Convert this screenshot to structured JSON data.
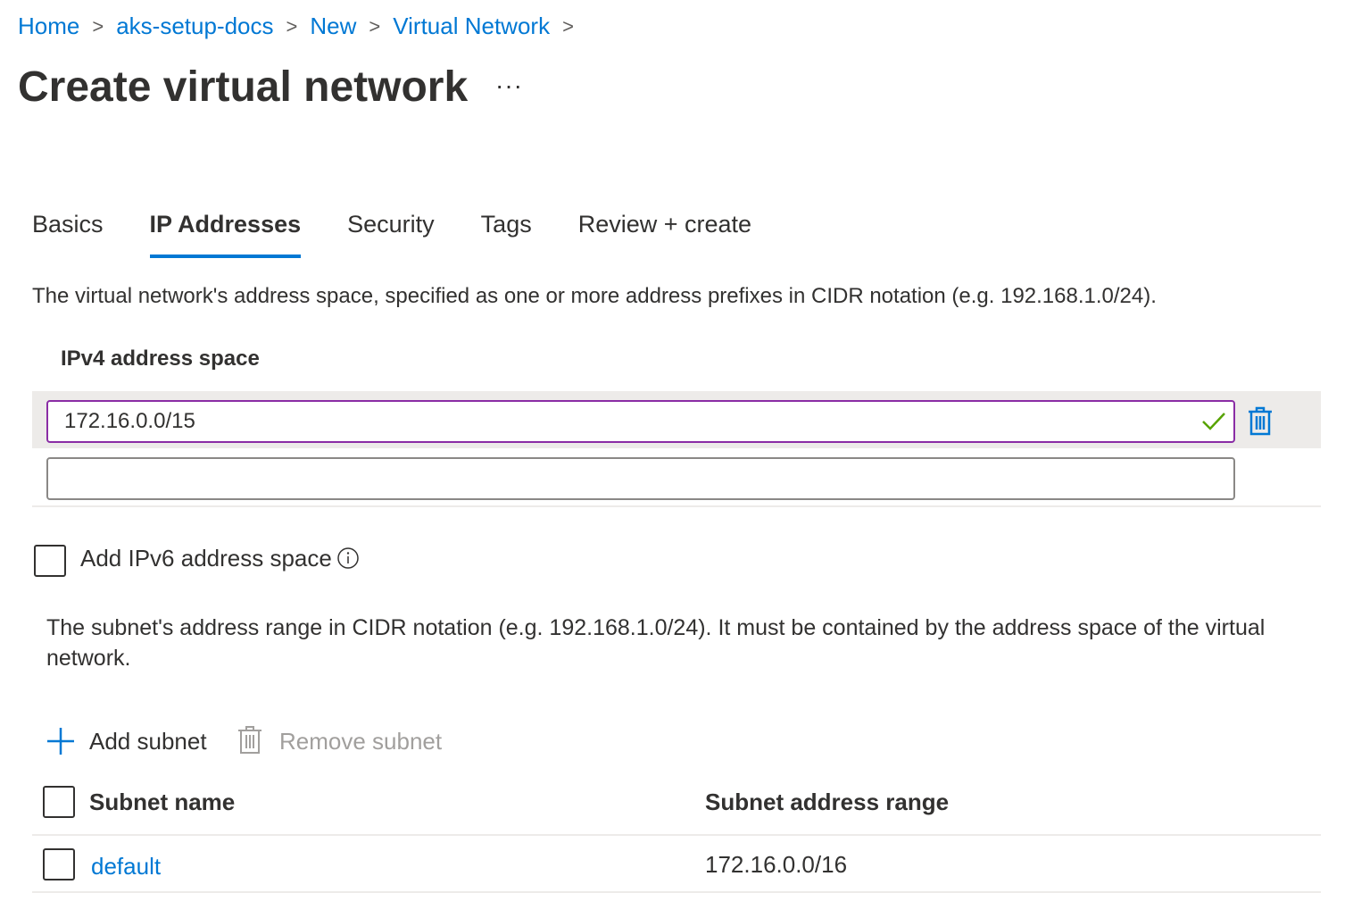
{
  "breadcrumb": [
    "Home",
    "aks-setup-docs",
    "New",
    "Virtual Network"
  ],
  "title": "Create virtual network",
  "more": "···",
  "tabs": [
    {
      "label": "Basics"
    },
    {
      "label": "IP Addresses",
      "active": true
    },
    {
      "label": "Security"
    },
    {
      "label": "Tags"
    },
    {
      "label": "Review + create"
    }
  ],
  "address_desc": "The virtual network's address space, specified as one or more address prefixes in CIDR notation (e.g. 192.168.1.0/24).",
  "ipv4_label": "IPv4 address space",
  "ipv4_value": "172.16.0.0/15",
  "ipv4_empty": "",
  "ipv6_label": "Add IPv6 address space",
  "subnet_desc": "The subnet's address range in CIDR notation (e.g. 192.168.1.0/24). It must be contained by the address space of the virtual network.",
  "add_subnet": "Add subnet",
  "remove_subnet": "Remove subnet",
  "table": {
    "headers": [
      "Subnet name",
      "Subnet address range"
    ],
    "rows": [
      {
        "name": "default",
        "range": "172.16.0.0/16"
      }
    ]
  },
  "colors": {
    "accent": "#0078d4",
    "valid": "#57a300",
    "focus_border": "#8a2da5"
  }
}
